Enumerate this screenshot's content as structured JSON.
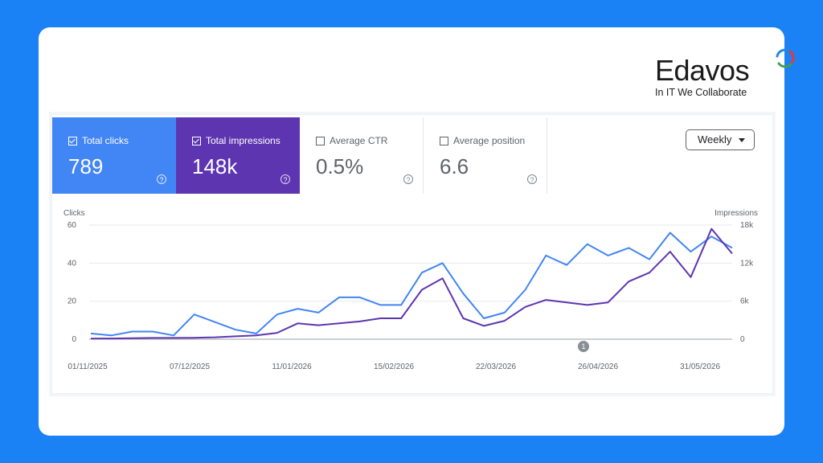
{
  "brand": {
    "name": "Edavos",
    "tagline": "In IT We Collaborate"
  },
  "metrics": [
    {
      "label": "Total clicks",
      "value": "789",
      "checked": true
    },
    {
      "label": "Total impressions",
      "value": "148k",
      "checked": true
    },
    {
      "label": "Average CTR",
      "value": "0.5%",
      "checked": false
    },
    {
      "label": "Average position",
      "value": "6.6",
      "checked": false
    }
  ],
  "period_select": {
    "value": "Weekly"
  },
  "colors": {
    "background": "#1a82f5",
    "clicks": "#4285f4",
    "impressions": "#5e35b1"
  },
  "annotation_marker": "1",
  "chart_data": {
    "type": "line",
    "y_left_label": "Clicks",
    "y_right_label": "Impressions",
    "y_left_ticks": [
      "60",
      "40",
      "20",
      "0"
    ],
    "y_right_ticks": [
      "18k",
      "12k",
      "6k",
      "0"
    ],
    "y_left_range": [
      0,
      60
    ],
    "y_right_range": [
      0,
      18000
    ],
    "x_tick_labels": [
      "01/11/2025",
      "07/12/2025",
      "11/01/2026",
      "15/02/2026",
      "22/03/2026",
      "26/04/2026",
      "31/05/2026"
    ],
    "grid": true,
    "series": [
      {
        "name": "Total clicks",
        "axis": "left",
        "values": [
          3,
          2,
          4,
          4,
          2,
          13,
          9,
          5,
          3,
          13,
          16,
          14,
          22,
          22,
          18,
          18,
          35,
          40,
          24,
          11,
          14,
          26,
          44,
          39,
          50,
          44,
          48,
          42,
          56,
          46,
          54,
          48
        ]
      },
      {
        "name": "Total impressions",
        "axis": "right",
        "values": [
          100,
          120,
          150,
          200,
          200,
          230,
          300,
          450,
          600,
          1000,
          2500,
          2200,
          2500,
          2800,
          3300,
          3300,
          7800,
          9600,
          3300,
          2100,
          2900,
          5100,
          6200,
          5800,
          5400,
          5800,
          9100,
          10500,
          13800,
          9800,
          17400,
          13500
        ]
      }
    ]
  }
}
